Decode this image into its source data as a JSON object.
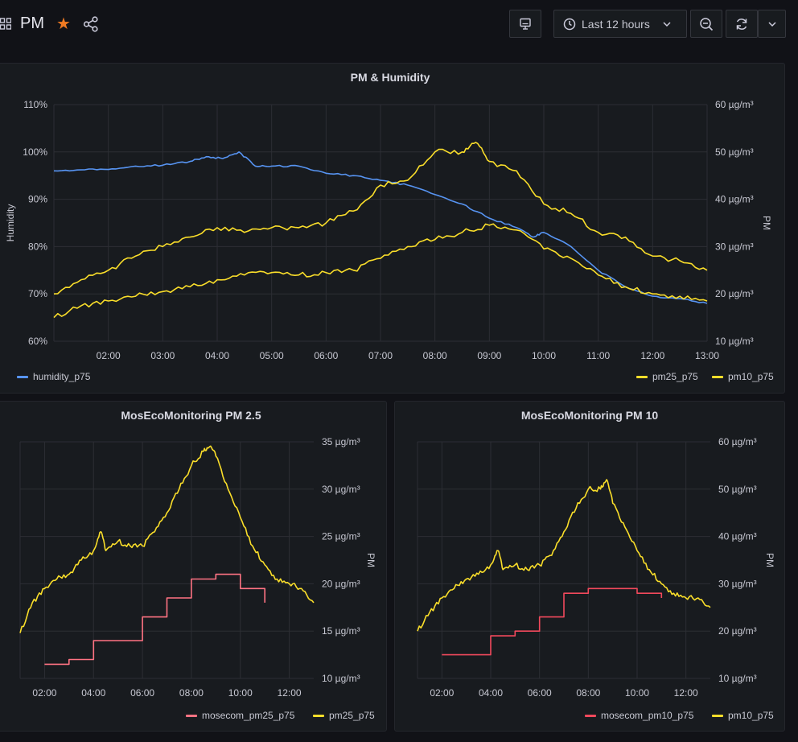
{
  "header": {
    "title": "PM",
    "starred": true,
    "time_range_label": "Last 12 hours",
    "icons": [
      "apps-icon",
      "star-icon",
      "share-icon",
      "tv-icon",
      "clock-icon",
      "chevron-down-icon",
      "zoom-out-icon",
      "refresh-icon",
      "chevron-down-icon"
    ]
  },
  "colors": {
    "background": "#111217",
    "panel": "#181b1f",
    "humidity": "#5794f2",
    "pm25": "#fade2a",
    "pm10": "#fade2a",
    "mosecom": "#ff7383",
    "mosecom_pm10": "#f2495c",
    "star": "#f07a22",
    "grid": "#2c2e34"
  },
  "panels": [
    {
      "title": "PM & Humidity",
      "left_axis_label": "Humidity",
      "right_axis_label": "PM",
      "legend_left": [
        {
          "name": "humidity_p75",
          "color": "#5794f2"
        }
      ],
      "legend_right": [
        {
          "name": "pm25_p75",
          "color": "#fade2a"
        },
        {
          "name": "pm10_p75",
          "color": "#fade2a"
        }
      ]
    },
    {
      "title": "MosEcoMonitoring PM 2.5",
      "right_axis_label": "PM",
      "legend": [
        {
          "name": "mosecom_pm25_p75",
          "color": "#ff7383"
        },
        {
          "name": "pm25_p75",
          "color": "#fade2a"
        }
      ]
    },
    {
      "title": "MosEcoMonitoring PM 10",
      "right_axis_label": "PM",
      "legend": [
        {
          "name": "mosecom_pm10_p75",
          "color": "#f2495c"
        },
        {
          "name": "pm10_p75",
          "color": "#fade2a"
        }
      ]
    }
  ],
  "chart_data": [
    {
      "type": "line",
      "title": "PM & Humidity",
      "x_range": [
        "01:00",
        "13:00"
      ],
      "x_ticks": [
        "02:00",
        "03:00",
        "04:00",
        "05:00",
        "06:00",
        "07:00",
        "08:00",
        "09:00",
        "10:00",
        "11:00",
        "12:00",
        "13:00"
      ],
      "y_left": {
        "label": "Humidity",
        "unit": "%",
        "range": [
          60,
          110
        ],
        "ticks": [
          "60%",
          "70%",
          "80%",
          "90%",
          "100%",
          "110%"
        ]
      },
      "y_right": {
        "label": "PM",
        "unit": "µg/m³",
        "range": [
          10,
          60
        ],
        "ticks": [
          "10 µg/m³",
          "20 µg/m³",
          "30 µg/m³",
          "40 µg/m³",
          "50 µg/m³",
          "60 µg/m³"
        ]
      },
      "series": [
        {
          "name": "humidity_p75",
          "axis": "left",
          "color": "#5794f2",
          "x": [
            1.0,
            1.5,
            2.0,
            2.5,
            3.0,
            3.5,
            3.8,
            4.1,
            4.4,
            4.7,
            5.0,
            5.5,
            6.0,
            6.5,
            7.0,
            7.5,
            8.0,
            8.5,
            9.0,
            9.5,
            9.8,
            10.0,
            10.5,
            11.0,
            11.5,
            12.0,
            12.5,
            13.0
          ],
          "values": [
            96,
            96.2,
            96.3,
            97,
            97.2,
            98,
            99,
            98.6,
            100,
            97,
            97,
            97,
            95.5,
            95,
            94,
            93,
            91,
            89,
            86,
            84,
            82,
            83,
            80,
            75,
            71.5,
            69.5,
            69,
            68
          ]
        },
        {
          "name": "pm25_p75",
          "axis": "right",
          "color": "#fade2a",
          "x": [
            1.0,
            1.5,
            2.0,
            2.5,
            3.0,
            3.5,
            4.0,
            4.5,
            5.0,
            5.5,
            6.0,
            6.5,
            7.0,
            7.5,
            8.0,
            8.5,
            9.0,
            9.5,
            10.0,
            10.5,
            11.0,
            11.5,
            12.0,
            12.5,
            13.0
          ],
          "values": [
            15,
            17.5,
            18.5,
            19.5,
            20.5,
            21.5,
            23,
            24,
            24.5,
            24,
            24.5,
            25,
            27.5,
            30,
            31.5,
            33,
            34.5,
            33.5,
            29.5,
            27.5,
            24,
            21.5,
            20,
            19.5,
            18.5
          ]
        },
        {
          "name": "pm10_p75",
          "axis": "right",
          "color": "#fade2a",
          "x": [
            1.0,
            1.5,
            2.0,
            2.5,
            3.0,
            3.5,
            4.0,
            4.5,
            5.0,
            5.5,
            6.0,
            6.5,
            7.0,
            7.5,
            8.0,
            8.5,
            8.75,
            9.0,
            9.5,
            10.0,
            10.5,
            11.0,
            11.5,
            12.0,
            12.5,
            13.0
          ],
          "values": [
            20,
            23,
            25,
            28,
            30,
            32,
            34,
            33,
            34,
            34,
            35,
            37.5,
            43,
            44,
            50,
            50,
            52,
            48,
            46,
            39,
            37,
            33,
            32,
            28,
            27,
            25
          ]
        }
      ]
    },
    {
      "type": "line",
      "title": "MosEcoMonitoring PM 2.5",
      "x_range": [
        "01:00",
        "13:00"
      ],
      "x_ticks": [
        "02:00",
        "04:00",
        "06:00",
        "08:00",
        "10:00",
        "12:00"
      ],
      "y_right": {
        "label": "PM",
        "unit": "µg/m³",
        "range": [
          10,
          35
        ],
        "ticks": [
          "10 µg/m³",
          "15 µg/m³",
          "20 µg/m³",
          "25 µg/m³",
          "30 µg/m³",
          "35 µg/m³"
        ]
      },
      "series": [
        {
          "name": "mosecom_pm25_p75",
          "color": "#ff7383",
          "step": true,
          "x": [
            2.0,
            3.0,
            4.0,
            5.0,
            6.0,
            7.0,
            8.0,
            9.0,
            10.0,
            11.0
          ],
          "values": [
            11.5,
            12,
            14,
            14,
            16.5,
            18.5,
            20.5,
            21,
            19.5,
            18
          ]
        },
        {
          "name": "pm25_p75",
          "color": "#fade2a",
          "x": [
            1.0,
            1.5,
            2.0,
            2.5,
            3.0,
            3.5,
            4.0,
            4.3,
            4.5,
            5.0,
            5.5,
            6.0,
            6.5,
            7.0,
            7.5,
            8.0,
            8.5,
            8.75,
            9.0,
            9.5,
            10.0,
            10.5,
            11.0,
            11.5,
            12.0,
            12.5,
            13.0
          ],
          "values": [
            14.8,
            18,
            19.5,
            20.5,
            21,
            22.5,
            23.5,
            25.5,
            23.5,
            24.5,
            24,
            24,
            25.5,
            27.5,
            30,
            32.5,
            34,
            34.5,
            33.5,
            30,
            27,
            24,
            22,
            20.5,
            20,
            19.5,
            18
          ]
        }
      ]
    },
    {
      "type": "line",
      "title": "MosEcoMonitoring PM 10",
      "x_range": [
        "01:00",
        "13:00"
      ],
      "x_ticks": [
        "02:00",
        "04:00",
        "06:00",
        "08:00",
        "10:00",
        "12:00"
      ],
      "y_right": {
        "label": "PM",
        "unit": "µg/m³",
        "range": [
          10,
          60
        ],
        "ticks": [
          "10 µg/m³",
          "20 µg/m³",
          "30 µg/m³",
          "40 µg/m³",
          "50 µg/m³",
          "60 µg/m³"
        ]
      },
      "series": [
        {
          "name": "mosecom_pm10_p75",
          "color": "#f2495c",
          "step": true,
          "x": [
            2.0,
            3.0,
            4.0,
            5.0,
            6.0,
            7.0,
            8.0,
            9.0,
            10.0,
            11.0
          ],
          "values": [
            15,
            15,
            19,
            20,
            23,
            28,
            29,
            29,
            28,
            27
          ]
        },
        {
          "name": "pm10_p75",
          "color": "#fade2a",
          "x": [
            1.0,
            1.5,
            2.0,
            2.5,
            3.0,
            3.5,
            4.0,
            4.3,
            4.5,
            5.0,
            5.5,
            6.0,
            6.5,
            7.0,
            7.5,
            8.0,
            8.5,
            8.75,
            9.0,
            9.5,
            10.0,
            10.5,
            11.0,
            11.5,
            12.0,
            12.5,
            13.0
          ],
          "values": [
            20,
            24,
            27,
            29,
            31,
            32,
            34,
            37,
            33,
            34,
            33,
            34,
            36,
            41,
            46,
            50,
            50,
            52,
            47,
            42,
            37,
            33,
            30,
            28,
            27,
            27,
            25
          ]
        }
      ]
    }
  ]
}
